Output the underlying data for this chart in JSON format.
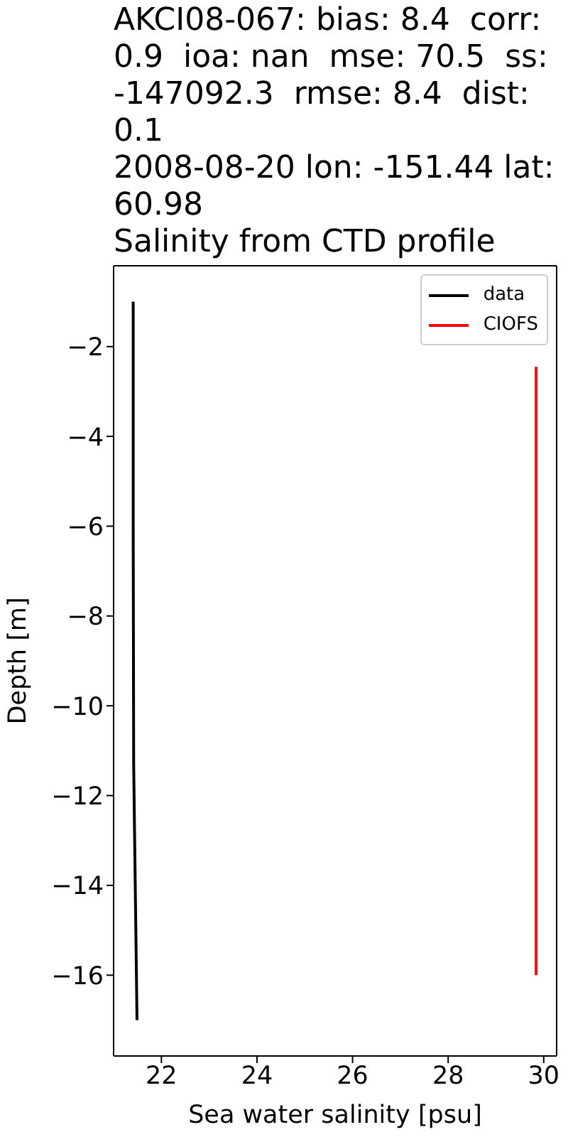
{
  "chart_data": {
    "type": "line",
    "title": "AKCI08-067: bias: 8.4  corr:\n0.9  ioa: nan  mse: 70.5  ss:\n-147092.3  rmse: 8.4  dist:\n0.1\n2008-08-20 lon: -151.44 lat:\n60.98\nSalinity from CTD profile",
    "xlabel": "Sea water salinity [psu]",
    "ylabel": "Depth [m]",
    "series": [
      {
        "name": "data",
        "color": "#000000",
        "x": [
          21.41,
          21.41,
          21.42,
          21.49
        ],
        "values": [
          -1,
          -6,
          -11.3,
          -17
        ]
      },
      {
        "name": "CIOFS",
        "color": "#ff0000",
        "x": [
          29.84,
          29.84
        ],
        "values": [
          -2.45,
          -16
        ]
      }
    ],
    "xlim": [
      21.0,
      30.27
    ],
    "xticks": [
      22,
      24,
      26,
      28,
      30
    ],
    "ylim": [
      -17.8,
      -0.2
    ],
    "yticks": [
      {
        "value": -2,
        "label": "−2"
      },
      {
        "value": -4,
        "label": "−4"
      },
      {
        "value": -6,
        "label": "−6"
      },
      {
        "value": -8,
        "label": "−8"
      },
      {
        "value": -10,
        "label": "−10"
      },
      {
        "value": -12,
        "label": "−12"
      },
      {
        "value": -14,
        "label": "−14"
      },
      {
        "value": -16,
        "label": "−16"
      }
    ],
    "legend": "top right",
    "marker": "none",
    "line_style": "solid",
    "grid": false
  }
}
